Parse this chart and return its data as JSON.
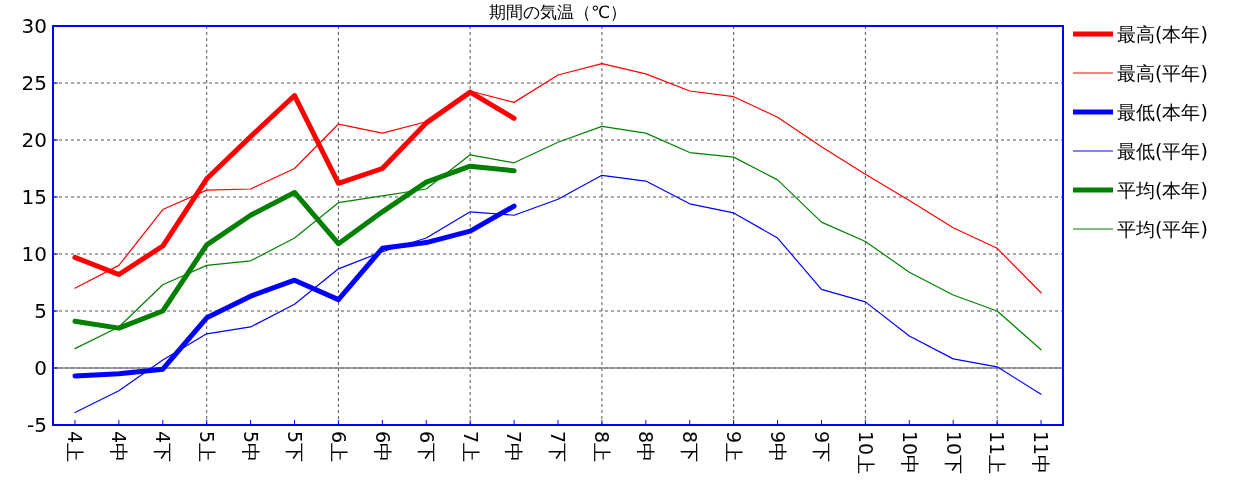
{
  "chart_data": {
    "type": "line",
    "title": "期間の気温（℃）",
    "categories": [
      "4上",
      "4中",
      "4下",
      "5上",
      "5中",
      "5下",
      "6上",
      "6中",
      "6下",
      "7上",
      "7中",
      "7下",
      "8上",
      "8中",
      "8下",
      "9上",
      "9中",
      "9下",
      "10上",
      "10中",
      "10下",
      "11上",
      "11中"
    ],
    "ylim": [
      -5,
      30
    ],
    "yticks": [
      -5,
      0,
      5,
      10,
      15,
      20,
      25,
      30
    ],
    "grid": true,
    "legend": "right",
    "marker": "none",
    "line_style": "solid",
    "ref_lines": [
      {
        "axis": "y",
        "value": 0,
        "color": "#808080"
      }
    ],
    "series": [
      {
        "name": "最高(本年)",
        "color": "#ff0000",
        "values": [
          9.7,
          8.2,
          10.7,
          16.6,
          20.3,
          23.9,
          16.2,
          17.5,
          21.5,
          24.2,
          21.9,
          null,
          null,
          null,
          null,
          null,
          null,
          null,
          null,
          null,
          null,
          null,
          null
        ]
      },
      {
        "name": "最高(平年)",
        "color": "#ff0000",
        "values": [
          7.0,
          9.0,
          13.9,
          15.6,
          15.7,
          17.5,
          21.4,
          20.6,
          21.6,
          24.3,
          23.3,
          25.7,
          26.7,
          25.8,
          24.3,
          23.8,
          22.0,
          19.4,
          17.0,
          14.7,
          12.3,
          10.5,
          6.6
        ]
      },
      {
        "name": "最低(本年)",
        "color": "#0000ff",
        "values": [
          -0.7,
          -0.5,
          -0.1,
          4.4,
          6.3,
          7.7,
          6.0,
          10.5,
          11.0,
          12.0,
          14.2,
          null,
          null,
          null,
          null,
          null,
          null,
          null,
          null,
          null,
          null,
          null,
          null
        ]
      },
      {
        "name": "最低(平年)",
        "color": "#0000ff",
        "values": [
          -3.9,
          -2.0,
          0.7,
          3.0,
          3.6,
          5.6,
          8.7,
          10.2,
          11.4,
          13.7,
          13.4,
          14.8,
          16.9,
          16.4,
          14.4,
          13.6,
          11.4,
          6.9,
          5.8,
          2.8,
          0.8,
          0.1,
          -2.3
        ]
      },
      {
        "name": "平均(本年)",
        "color": "#008000",
        "values": [
          4.1,
          3.5,
          5.0,
          10.8,
          13.4,
          15.4,
          10.9,
          13.7,
          16.3,
          17.7,
          17.3,
          null,
          null,
          null,
          null,
          null,
          null,
          null,
          null,
          null,
          null,
          null,
          null
        ]
      },
      {
        "name": "平均(平年)",
        "color": "#008000",
        "values": [
          1.7,
          3.6,
          7.3,
          9.0,
          9.4,
          11.4,
          14.5,
          15.1,
          15.7,
          18.7,
          18.0,
          19.8,
          21.2,
          20.6,
          18.9,
          18.5,
          16.5,
          12.8,
          11.1,
          8.4,
          6.4,
          5.0,
          1.6
        ]
      }
    ]
  }
}
